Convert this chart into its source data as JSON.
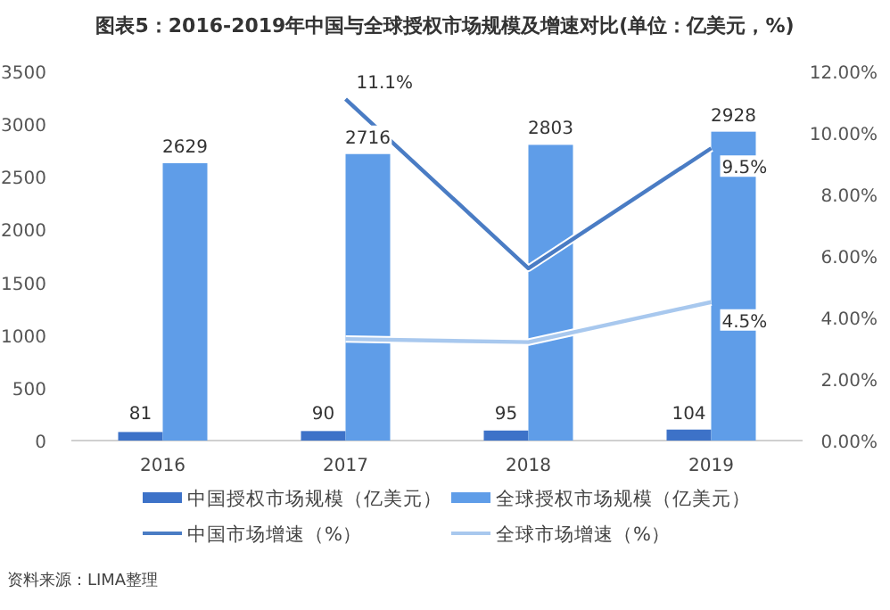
{
  "chart_data": {
    "type": "bar",
    "title": "图表5：2016-2019年中国与全球授权市场规模及增速对比(单位：亿美元，%)",
    "categories": [
      "2016",
      "2017",
      "2018",
      "2019"
    ],
    "series": [
      {
        "name": "中国授权市场规模（亿美元）",
        "type": "bar",
        "color": "#3d72c8",
        "values": [
          81,
          90,
          95,
          104
        ],
        "value_labels": [
          "81",
          "90",
          "95",
          "104"
        ]
      },
      {
        "name": "全球授权市场规模（亿美元）",
        "type": "bar",
        "color": "#5f9de8",
        "values": [
          2629,
          2716,
          2803,
          2928
        ],
        "value_labels": [
          "2629",
          "2716",
          "2803",
          "2928"
        ]
      },
      {
        "name": "中国市场增速（%）",
        "type": "line",
        "axis": "y2",
        "color": "#4a7cc4",
        "values": [
          null,
          11.1,
          5.6,
          9.5
        ],
        "value_labels": [
          null,
          "11.1%",
          null,
          "9.5%"
        ]
      },
      {
        "name": "全球市场增速（%）",
        "type": "line",
        "axis": "y2",
        "color": "#a8c8ee",
        "values": [
          null,
          3.3,
          3.2,
          4.5
        ],
        "value_labels": [
          null,
          null,
          null,
          "4.5%"
        ]
      }
    ],
    "ylim": [
      0,
      3500
    ],
    "yticks": [
      0,
      500,
      1000,
      1500,
      2000,
      2500,
      3000,
      3500
    ],
    "y2lim": [
      0,
      12
    ],
    "y2ticks": [
      {
        "value": 0,
        "label": "0.00%"
      },
      {
        "value": 2,
        "label": "2.00%"
      },
      {
        "value": 4,
        "label": "4.00%"
      },
      {
        "value": 6,
        "label": "6.00%"
      },
      {
        "value": 8,
        "label": "8.00%"
      },
      {
        "value": 10,
        "label": "10.00%"
      },
      {
        "value": 12,
        "label": "12.00%"
      }
    ],
    "grid": false,
    "legend": "bottom",
    "annotations": [
      "资料来源：LIMA整理"
    ]
  }
}
